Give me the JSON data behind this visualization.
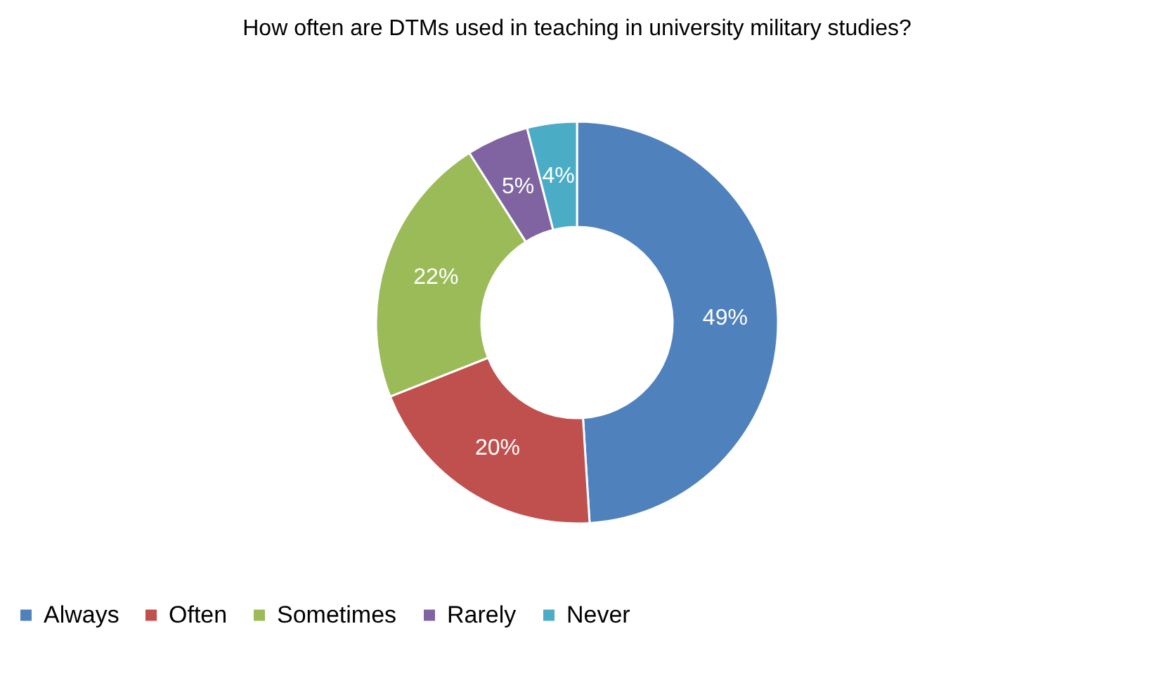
{
  "chart_data": {
    "type": "donut",
    "title": "How often are DTMs used in teaching in university military studies?",
    "categories": [
      "Always",
      "Often",
      "Sometimes",
      "Rarely",
      "Never"
    ],
    "values": [
      49,
      20,
      22,
      5,
      4
    ],
    "value_labels": [
      "49%",
      "20%",
      "22%",
      "5%",
      "4%"
    ],
    "colors": [
      "#4f81bd",
      "#c0504d",
      "#9bbb59",
      "#8064a2",
      "#4bacc6"
    ],
    "legend": "bottom"
  }
}
